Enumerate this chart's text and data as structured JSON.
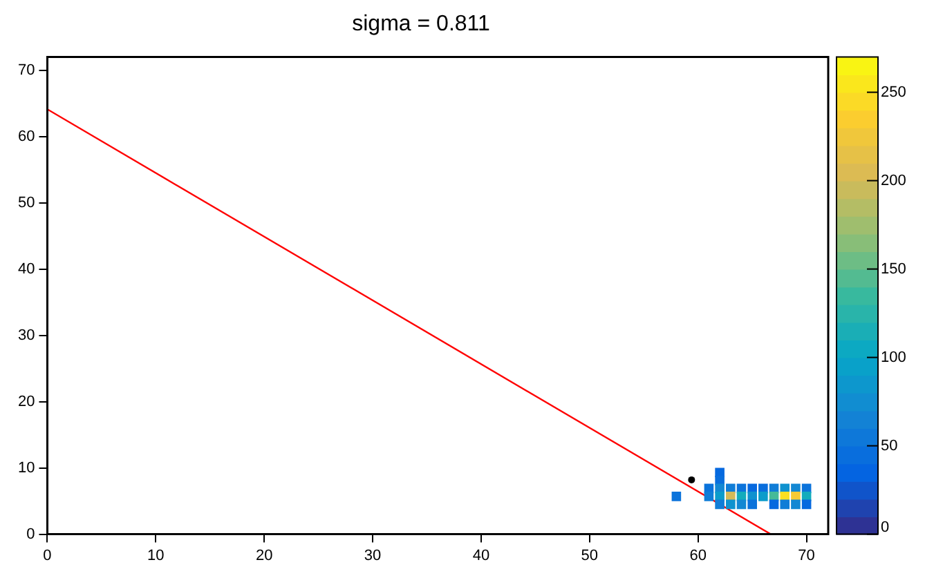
{
  "chart_data": {
    "type": "scatter",
    "title": "sigma = 0.811",
    "xlim": [
      0,
      72
    ],
    "xticks": [
      0,
      10,
      20,
      30,
      40,
      50,
      60,
      70
    ],
    "ylim": [
      0,
      72
    ],
    "yticks": [
      0,
      10,
      20,
      30,
      40,
      50,
      60,
      70
    ],
    "clim": [
      0,
      270
    ],
    "cticks": [
      0,
      50,
      100,
      150,
      200,
      250
    ],
    "grid": false,
    "legend": false,
    "series": [
      {
        "type": "scatter",
        "marker": "square",
        "x": [
          62,
          62,
          61,
          62,
          63,
          64,
          65,
          66,
          67,
          68,
          69,
          70,
          58,
          61,
          62,
          63,
          64,
          65,
          66,
          67,
          68,
          69,
          70,
          62,
          63,
          64,
          65,
          67,
          68,
          69,
          70
        ],
        "values": [
          9.3,
          8.1,
          6.9,
          6.9,
          6.9,
          6.9,
          6.9,
          6.9,
          6.9,
          6.9,
          6.9,
          6.9,
          5.7,
          5.7,
          5.7,
          5.7,
          5.7,
          5.7,
          5.7,
          5.7,
          5.7,
          5.7,
          5.7,
          4.5,
          4.5,
          4.5,
          4.5,
          4.5,
          4.5,
          4.5,
          4.5
        ],
        "cvalues": [
          40,
          45,
          50,
          70,
          60,
          50,
          40,
          45,
          60,
          80,
          70,
          50,
          50,
          60,
          90,
          200,
          110,
          80,
          90,
          140,
          250,
          230,
          110,
          60,
          80,
          70,
          50,
          40,
          60,
          70,
          40
        ],
        "colors": [
          "#0669df",
          "#096edd",
          "#0b73db",
          "#1388d3",
          "#107dd7",
          "#0b73db",
          "#0669df",
          "#096edd",
          "#107dd7",
          "#0f92cf",
          "#1388d3",
          "#0b73db",
          "#0b73db",
          "#107dd7",
          "#0b9ccb",
          "#d4ba58",
          "#13acbc",
          "#0f92cf",
          "#0b9ccb",
          "#45ba98",
          "#fbe021",
          "#f6ca35",
          "#13acbc",
          "#107dd7",
          "#0f92cf",
          "#1388d3",
          "#0b73db",
          "#0669df",
          "#107dd7",
          "#1388d3",
          "#0669df"
        ]
      },
      {
        "type": "line",
        "color": "#ff0000",
        "x": [
          0,
          66.7
        ],
        "values": [
          64.1,
          0
        ]
      },
      {
        "type": "scatter",
        "marker": "circle",
        "color": "#000000",
        "x": [
          59.4
        ],
        "values": [
          8.2
        ]
      }
    ]
  }
}
